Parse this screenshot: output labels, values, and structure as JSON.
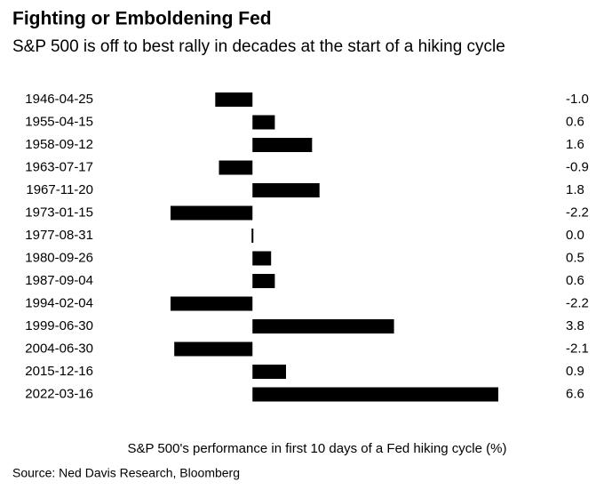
{
  "chart_data": {
    "type": "barh",
    "title": "Fighting or Emboldening Fed",
    "subtitle": "S&P 500 is off to best rally in decades at the start of a hiking cycle",
    "x_label": "S&P 500's performance in first 10 days of a Fed hiking cycle (%)",
    "source": "Source: Ned Davis Research, Bloomberg",
    "categories": [
      "1946-04-25",
      "1955-04-15",
      "1958-09-12",
      "1963-07-17",
      "1967-11-20",
      "1973-01-15",
      "1977-08-31",
      "1980-09-26",
      "1987-09-04",
      "1994-02-04",
      "1999-06-30",
      "2004-06-30",
      "2015-12-16",
      "2022-03-16"
    ],
    "values": [
      -1.0,
      0.6,
      1.6,
      -0.9,
      1.8,
      -2.2,
      0.0,
      0.5,
      0.6,
      -2.2,
      3.8,
      -2.1,
      0.9,
      6.6
    ],
    "value_labels": [
      "-1.0",
      "0.6",
      "1.6",
      "-0.9",
      "1.8",
      "-2.2",
      "0.0",
      "0.5",
      "0.6",
      "-2.2",
      "3.8",
      "-2.1",
      "0.9",
      "6.6"
    ],
    "color": "#000000"
  }
}
